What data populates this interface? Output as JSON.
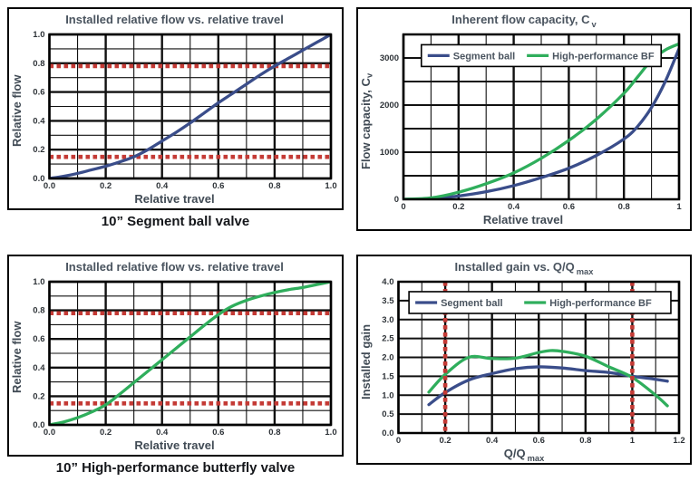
{
  "colors": {
    "segment_ball": "#3a4d8a",
    "high_performance_bf": "#2fae5c",
    "reference_line": "#c43a35",
    "grid": "#111111",
    "frame": "#000000",
    "title_text": "#4a545f",
    "axis_label_text": "#414b55",
    "tick_text": "#2e3338",
    "legend_text": "#4a545f",
    "caption_text": "#14161a"
  },
  "captions": {
    "segment_ball_valve": "10” Segment ball valve",
    "butterfly_valve": "10” High-performance butterfly valve"
  },
  "chart_data": [
    {
      "type": "line",
      "title": "Installed relative flow vs. relative travel",
      "title_sub": "",
      "xlabel": "Relative travel",
      "xlabel_sub": "",
      "ylabel": "Relative flow",
      "ylabel_sub": "",
      "xlim": [
        0,
        1
      ],
      "ylim": [
        0,
        1
      ],
      "x_ticks": [
        {
          "v": 0,
          "l": "0.0"
        },
        {
          "v": 0.2,
          "l": "0.2"
        },
        {
          "v": 0.4,
          "l": "0.4"
        },
        {
          "v": 0.6,
          "l": "0.6"
        },
        {
          "v": 0.8,
          "l": "0.8"
        },
        {
          "v": 1,
          "l": "1.0"
        }
      ],
      "y_ticks": [
        {
          "v": 0,
          "l": "0.0"
        },
        {
          "v": 0.2,
          "l": "0.2"
        },
        {
          "v": 0.4,
          "l": "0.4"
        },
        {
          "v": 0.6,
          "l": "0.6"
        },
        {
          "v": 0.8,
          "l": "0.8"
        },
        {
          "v": 1,
          "l": "1.0"
        }
      ],
      "grid": {
        "x": [
          {
            "step": 0.1,
            "width": 1.1
          },
          {
            "step": 0.2,
            "width": 2.4
          }
        ],
        "y": [
          {
            "step": 0.1,
            "width": 1.1
          },
          {
            "step": 0.2,
            "width": 2.4
          }
        ]
      },
      "series": [
        {
          "name": "Segment ball",
          "color_key": "segment_ball",
          "x": [
            0,
            0.05,
            0.1,
            0.15,
            0.2,
            0.25,
            0.3,
            0.35,
            0.4,
            0.45,
            0.5,
            0.55,
            0.6,
            0.65,
            0.7,
            0.75,
            0.8,
            0.85,
            0.9,
            0.95,
            1
          ],
          "y": [
            0,
            0.015,
            0.035,
            0.06,
            0.085,
            0.115,
            0.15,
            0.2,
            0.26,
            0.32,
            0.385,
            0.455,
            0.525,
            0.59,
            0.655,
            0.72,
            0.78,
            0.835,
            0.89,
            0.945,
            1
          ]
        }
      ],
      "ref_lines": [
        {
          "orient": "h",
          "value": 0.78
        },
        {
          "orient": "h",
          "value": 0.15
        }
      ],
      "ref_on_top": false,
      "legend": null
    },
    {
      "type": "line",
      "title": "Inherent flow capacity, C",
      "title_sub": "v",
      "xlabel": "Relative travel",
      "xlabel_sub": "",
      "ylabel": "Flow capacity, C",
      "ylabel_sub": "v",
      "xlim": [
        0,
        1
      ],
      "ylim": [
        0,
        3500
      ],
      "x_ticks": [
        {
          "v": 0,
          "l": "0"
        },
        {
          "v": 0.2,
          "l": "0.2"
        },
        {
          "v": 0.4,
          "l": "0.4"
        },
        {
          "v": 0.6,
          "l": "0.6"
        },
        {
          "v": 0.8,
          "l": "0.8"
        },
        {
          "v": 1,
          "l": "1"
        }
      ],
      "y_ticks": [
        {
          "v": 0,
          "l": "0"
        },
        {
          "v": 1000,
          "l": "1000"
        },
        {
          "v": 2000,
          "l": "2000"
        },
        {
          "v": 3000,
          "l": "3000"
        }
      ],
      "grid": {
        "x": [
          {
            "step": 0.1,
            "width": 1.1
          },
          {
            "step": 0.2,
            "width": 2.4
          }
        ],
        "y": [
          {
            "step": 500,
            "width": 2
          }
        ]
      },
      "series": [
        {
          "name": "Segment ball",
          "color_key": "segment_ball",
          "x": [
            0,
            0.1,
            0.2,
            0.3,
            0.4,
            0.5,
            0.6,
            0.7,
            0.8,
            0.85,
            0.9,
            0.95,
            1
          ],
          "y": [
            0,
            15,
            70,
            160,
            290,
            460,
            660,
            930,
            1280,
            1550,
            1950,
            2500,
            3200
          ]
        },
        {
          "name": "High-performance BF",
          "color_key": "high_performance_bf",
          "x": [
            0,
            0.1,
            0.2,
            0.3,
            0.4,
            0.5,
            0.6,
            0.7,
            0.8,
            0.85,
            0.9,
            0.95,
            1
          ],
          "y": [
            0,
            30,
            150,
            330,
            560,
            870,
            1250,
            1700,
            2250,
            2600,
            2950,
            3170,
            3300
          ]
        }
      ],
      "ref_lines": [],
      "ref_on_top": false,
      "legend": {
        "x0": 0.065,
        "x1": 0.935,
        "y": 3050,
        "entries": [
          {
            "label": "Segment ball",
            "color_key": "segment_ball"
          },
          {
            "label": "High-performance BF",
            "color_key": "high_performance_bf"
          }
        ]
      }
    },
    {
      "type": "line",
      "title": "Installed relative flow vs. relative travel",
      "title_sub": "",
      "xlabel": "Relative travel",
      "xlabel_sub": "",
      "ylabel": "Relative flow",
      "ylabel_sub": "",
      "xlim": [
        0,
        1
      ],
      "ylim": [
        0,
        1
      ],
      "x_ticks": [
        {
          "v": 0,
          "l": "0.0"
        },
        {
          "v": 0.2,
          "l": "0.2"
        },
        {
          "v": 0.4,
          "l": "0.4"
        },
        {
          "v": 0.6,
          "l": "0.6"
        },
        {
          "v": 0.8,
          "l": "0.8"
        },
        {
          "v": 1,
          "l": "1.0"
        }
      ],
      "y_ticks": [
        {
          "v": 0,
          "l": "0.0"
        },
        {
          "v": 0.2,
          "l": "0.2"
        },
        {
          "v": 0.4,
          "l": "0.4"
        },
        {
          "v": 0.6,
          "l": "0.6"
        },
        {
          "v": 0.8,
          "l": "0.8"
        },
        {
          "v": 1,
          "l": "1.0"
        }
      ],
      "grid": {
        "x": [
          {
            "step": 0.1,
            "width": 1.1
          },
          {
            "step": 0.2,
            "width": 2.4
          }
        ],
        "y": [
          {
            "step": 0.1,
            "width": 1.1
          },
          {
            "step": 0.2,
            "width": 2.4
          }
        ]
      },
      "series": [
        {
          "name": "High-performance BF",
          "color_key": "high_performance_bf",
          "x": [
            0,
            0.05,
            0.1,
            0.15,
            0.2,
            0.25,
            0.3,
            0.35,
            0.4,
            0.45,
            0.5,
            0.55,
            0.6,
            0.65,
            0.7,
            0.75,
            0.8,
            0.85,
            0.9,
            0.95,
            1
          ],
          "y": [
            0,
            0.02,
            0.05,
            0.09,
            0.14,
            0.215,
            0.295,
            0.375,
            0.455,
            0.535,
            0.615,
            0.695,
            0.77,
            0.83,
            0.87,
            0.9,
            0.925,
            0.945,
            0.96,
            0.98,
            1
          ]
        }
      ],
      "ref_lines": [
        {
          "orient": "h",
          "value": 0.78
        },
        {
          "orient": "h",
          "value": 0.15
        }
      ],
      "ref_on_top": false,
      "legend": null
    },
    {
      "type": "line",
      "title": "Installed gain vs. Q/Q",
      "title_sub": "max",
      "xlabel": "Q/Q",
      "xlabel_sub": "max",
      "ylabel": "Installed gain",
      "ylabel_sub": "",
      "xlim": [
        0,
        1.2
      ],
      "ylim": [
        0,
        4
      ],
      "x_ticks": [
        {
          "v": 0,
          "l": "0"
        },
        {
          "v": 0.2,
          "l": "0.2"
        },
        {
          "v": 0.4,
          "l": "0.4"
        },
        {
          "v": 0.6,
          "l": "0.6"
        },
        {
          "v": 0.8,
          "l": "0.8"
        },
        {
          "v": 1,
          "l": "1"
        },
        {
          "v": 1.2,
          "l": "1.2"
        }
      ],
      "y_ticks": [
        {
          "v": 0,
          "l": "0.0"
        },
        {
          "v": 0.5,
          "l": "0.5"
        },
        {
          "v": 1,
          "l": "1.0"
        },
        {
          "v": 1.5,
          "l": "1.5"
        },
        {
          "v": 2,
          "l": "2.0"
        },
        {
          "v": 2.5,
          "l": "2.5"
        },
        {
          "v": 3,
          "l": "3.0"
        },
        {
          "v": 3.5,
          "l": "3.5"
        },
        {
          "v": 4,
          "l": "4.0"
        }
      ],
      "grid": {
        "x": [
          {
            "step": 0.1,
            "width": 1.1
          },
          {
            "step": 0.2,
            "width": 2.4
          }
        ],
        "y": [
          {
            "step": 0.5,
            "width": 2
          }
        ]
      },
      "series": [
        {
          "name": "Segment ball",
          "color_key": "segment_ball",
          "x": [
            0.13,
            0.2,
            0.3,
            0.4,
            0.5,
            0.6,
            0.7,
            0.8,
            0.9,
            1,
            1.1,
            1.15
          ],
          "y": [
            0.75,
            1.07,
            1.4,
            1.57,
            1.7,
            1.75,
            1.72,
            1.65,
            1.6,
            1.5,
            1.42,
            1.37
          ]
        },
        {
          "name": "High-performance BF",
          "color_key": "high_performance_bf",
          "x": [
            0.13,
            0.2,
            0.3,
            0.4,
            0.5,
            0.6,
            0.65,
            0.7,
            0.8,
            0.9,
            1,
            1.1,
            1.15
          ],
          "y": [
            1.08,
            1.55,
            2,
            1.97,
            1.98,
            2.13,
            2.18,
            2.16,
            2.03,
            1.75,
            1.47,
            1,
            0.72
          ]
        }
      ],
      "ref_lines": [
        {
          "orient": "v",
          "value": 0.2
        },
        {
          "orient": "v",
          "value": 1
        }
      ],
      "ref_on_top": true,
      "legend": {
        "x0": 0.045,
        "x1": 1.165,
        "y": 3.45,
        "entries": [
          {
            "label": "Segment ball",
            "color_key": "segment_ball"
          },
          {
            "label": "High-performance BF",
            "color_key": "high_performance_bf"
          }
        ]
      }
    }
  ]
}
